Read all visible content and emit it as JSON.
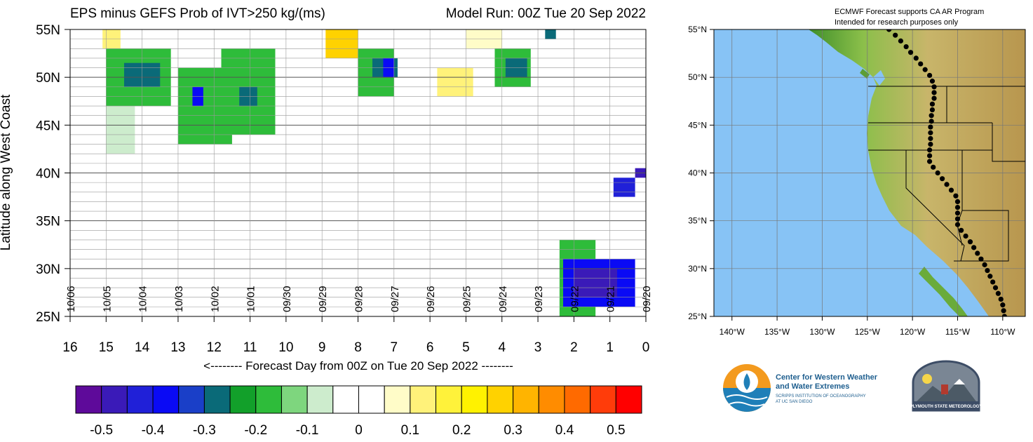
{
  "header": {
    "title": "EPS minus GEFS Prob of IVT>250 kg/(ms)",
    "model_run": "Model Run: 00Z Tue 20 Sep 2022"
  },
  "chart_data": {
    "type": "heatmap",
    "title": "EPS minus GEFS Prob of IVT>250 kg/(ms)",
    "subtitle": "Model Run: 00Z Tue 20 Sep 2022",
    "xlabel": "<-------- Forecast Day from 00Z on Tue 20 Sep 2022 --------",
    "ylabel": "Latitude along West Coast",
    "x_ticks": [
      "16",
      "15",
      "14",
      "13",
      "12",
      "11",
      "10",
      "9",
      "8",
      "7",
      "6",
      "5",
      "4",
      "3",
      "2",
      "1",
      "0"
    ],
    "xlim": [
      16,
      0
    ],
    "y_ticks": [
      "25N",
      "30N",
      "35N",
      "40N",
      "45N",
      "50N",
      "55N"
    ],
    "ylim": [
      25,
      55
    ],
    "date_labels": [
      "10/06",
      "10/05",
      "10/04",
      "10/03",
      "10/02",
      "10/01",
      "09/30",
      "09/29",
      "09/28",
      "09/27",
      "09/26",
      "09/25",
      "09/24",
      "09/23",
      "09/22",
      "09/21",
      "09/20"
    ],
    "colorbar": {
      "labels": [
        "-0.5",
        "-0.4",
        "-0.3",
        "-0.2",
        "-0.1",
        "0",
        "0.1",
        "0.2",
        "0.3",
        "0.4",
        "0.5"
      ],
      "colors": [
        "#5e0a9a",
        "#3a1ab8",
        "#2020d8",
        "#0a0af5",
        "#1a3fc8",
        "#0a6a78",
        "#12a02a",
        "#2ebc3a",
        "#7ed67e",
        "#cdeccd",
        "#ffffff",
        "#ffffff",
        "#fffcc8",
        "#fff27a",
        "#fff23a",
        "#fff200",
        "#ffd200",
        "#ffb400",
        "#ff8c00",
        "#ff6a00",
        "#ff3c0a",
        "#ff0000"
      ]
    },
    "regions": [
      {
        "x0": 13.2,
        "x1": 15.0,
        "y0": 47,
        "y1": 53,
        "value": -0.2
      },
      {
        "x0": 13.5,
        "x1": 14.5,
        "y0": 49,
        "y1": 51.5,
        "value": -0.3
      },
      {
        "x0": 11.5,
        "x1": 13.0,
        "y0": 43,
        "y1": 51,
        "value": -0.2
      },
      {
        "x0": 12.3,
        "x1": 12.6,
        "y0": 47,
        "y1": 49,
        "value": -0.4
      },
      {
        "x0": 10.3,
        "x1": 11.8,
        "y0": 44,
        "y1": 53,
        "value": -0.2
      },
      {
        "x0": 10.8,
        "x1": 11.3,
        "y0": 47,
        "y1": 49,
        "value": -0.3
      },
      {
        "x0": 14.2,
        "x1": 15.0,
        "y0": 42,
        "y1": 47,
        "value": -0.1
      },
      {
        "x0": 9.3,
        "x1": 10.2,
        "y0": 44,
        "y1": 52,
        "value": -0.05
      },
      {
        "x0": 7.8,
        "x1": 8.3,
        "y0": 38,
        "y1": 48,
        "value": -0.05
      },
      {
        "x0": 7.0,
        "x1": 8.0,
        "y0": 48,
        "y1": 53,
        "value": -0.2
      },
      {
        "x0": 6.9,
        "x1": 7.6,
        "y0": 50,
        "y1": 52,
        "value": -0.3
      },
      {
        "x0": 7.0,
        "x1": 7.3,
        "y0": 50,
        "y1": 52,
        "value": -0.4
      },
      {
        "x0": 3.2,
        "x1": 4.2,
        "y0": 49,
        "y1": 53,
        "value": -0.2
      },
      {
        "x0": 3.3,
        "x1": 3.9,
        "y0": 50,
        "y1": 52,
        "value": -0.3
      },
      {
        "x0": 2.5,
        "x1": 2.8,
        "y0": 54,
        "y1": 55,
        "value": -0.3
      },
      {
        "x0": 8.0,
        "x1": 8.9,
        "y0": 52,
        "y1": 55,
        "value": 0.3
      },
      {
        "x0": 14.6,
        "x1": 15.1,
        "y0": 53,
        "y1": 55,
        "value": 0.15
      },
      {
        "x0": 4.8,
        "x1": 5.8,
        "y0": 48,
        "y1": 51,
        "value": 0.15
      },
      {
        "x0": 4.0,
        "x1": 5.0,
        "y0": 53,
        "y1": 55,
        "value": 0.1
      },
      {
        "x0": 1.4,
        "x1": 2.4,
        "y0": 25,
        "y1": 33,
        "value": -0.2
      },
      {
        "x0": 0.3,
        "x1": 2.3,
        "y0": 26,
        "y1": 31,
        "value": -0.4
      },
      {
        "x0": 0.8,
        "x1": 2.0,
        "y0": 27,
        "y1": 30,
        "value": -0.5
      },
      {
        "x0": 0.3,
        "x1": 0.9,
        "y0": 37.5,
        "y1": 39.5,
        "value": -0.45
      },
      {
        "x0": 0.0,
        "x1": 0.3,
        "y0": 39.5,
        "y1": 40.5,
        "value": -0.5
      }
    ]
  },
  "map": {
    "header_line1": "ECMWF Forecast supports CA AR Program",
    "header_line2": "Intended for research purposes only",
    "lat_labels": [
      "55°N",
      "50°N",
      "45°N",
      "40°N",
      "35°N",
      "30°N",
      "25°N"
    ],
    "lon_labels": [
      "140°W",
      "135°W",
      "130°W",
      "125°W",
      "120°W",
      "115°W",
      "110°W"
    ],
    "coast_points": [
      {
        "lon": -122.6,
        "lat": 55.0
      },
      {
        "lon": -121.9,
        "lat": 54.4
      },
      {
        "lon": -121.3,
        "lat": 53.8
      },
      {
        "lon": -120.7,
        "lat": 53.2
      },
      {
        "lon": -120.2,
        "lat": 52.6
      },
      {
        "lon": -119.6,
        "lat": 52.0
      },
      {
        "lon": -119.1,
        "lat": 51.4
      },
      {
        "lon": -118.6,
        "lat": 50.8
      },
      {
        "lon": -118.1,
        "lat": 50.2
      },
      {
        "lon": -117.8,
        "lat": 49.6
      },
      {
        "lon": -117.6,
        "lat": 49.0
      },
      {
        "lon": -117.6,
        "lat": 48.4
      },
      {
        "lon": -117.6,
        "lat": 47.8
      },
      {
        "lon": -117.8,
        "lat": 47.2
      },
      {
        "lon": -117.8,
        "lat": 46.6
      },
      {
        "lon": -117.9,
        "lat": 46.0
      },
      {
        "lon": -117.9,
        "lat": 45.4
      },
      {
        "lon": -118.0,
        "lat": 44.8
      },
      {
        "lon": -118.0,
        "lat": 44.2
      },
      {
        "lon": -118.0,
        "lat": 43.6
      },
      {
        "lon": -118.0,
        "lat": 43.0
      },
      {
        "lon": -118.1,
        "lat": 42.4
      },
      {
        "lon": -118.1,
        "lat": 41.8
      },
      {
        "lon": -118.1,
        "lat": 41.2
      },
      {
        "lon": -117.7,
        "lat": 40.6
      },
      {
        "lon": -117.2,
        "lat": 40.0
      },
      {
        "lon": -116.7,
        "lat": 39.4
      },
      {
        "lon": -116.2,
        "lat": 38.8
      },
      {
        "lon": -115.7,
        "lat": 38.2
      },
      {
        "lon": -115.2,
        "lat": 37.6
      },
      {
        "lon": -115.0,
        "lat": 37.0
      },
      {
        "lon": -115.0,
        "lat": 36.4
      },
      {
        "lon": -115.0,
        "lat": 35.8
      },
      {
        "lon": -115.0,
        "lat": 35.2
      },
      {
        "lon": -115.0,
        "lat": 34.6
      },
      {
        "lon": -114.6,
        "lat": 34.0
      },
      {
        "lon": -114.1,
        "lat": 33.4
      },
      {
        "lon": -113.6,
        "lat": 32.8
      },
      {
        "lon": -113.2,
        "lat": 32.2
      },
      {
        "lon": -112.8,
        "lat": 31.6
      },
      {
        "lon": -112.4,
        "lat": 31.0
      },
      {
        "lon": -112.0,
        "lat": 30.4
      },
      {
        "lon": -111.7,
        "lat": 29.8
      },
      {
        "lon": -111.4,
        "lat": 29.2
      },
      {
        "lon": -111.1,
        "lat": 28.6
      },
      {
        "lon": -110.8,
        "lat": 28.0
      },
      {
        "lon": -110.5,
        "lat": 27.4
      },
      {
        "lon": -110.2,
        "lat": 26.8
      },
      {
        "lon": -110.0,
        "lat": 26.2
      },
      {
        "lon": -109.9,
        "lat": 25.6
      },
      {
        "lon": -109.8,
        "lat": 25.0
      }
    ]
  },
  "logos": {
    "cw3e_line1": "Center for Western Weather",
    "cw3e_line2": "and Water Extremes",
    "cw3e_line3": "SCRIPPS INSTITUTION OF OCEANOGRAPHY",
    "cw3e_line4": "AT UC SAN DIEGO",
    "plymouth": "PLYMOUTH STATE METEOROLOGY"
  }
}
